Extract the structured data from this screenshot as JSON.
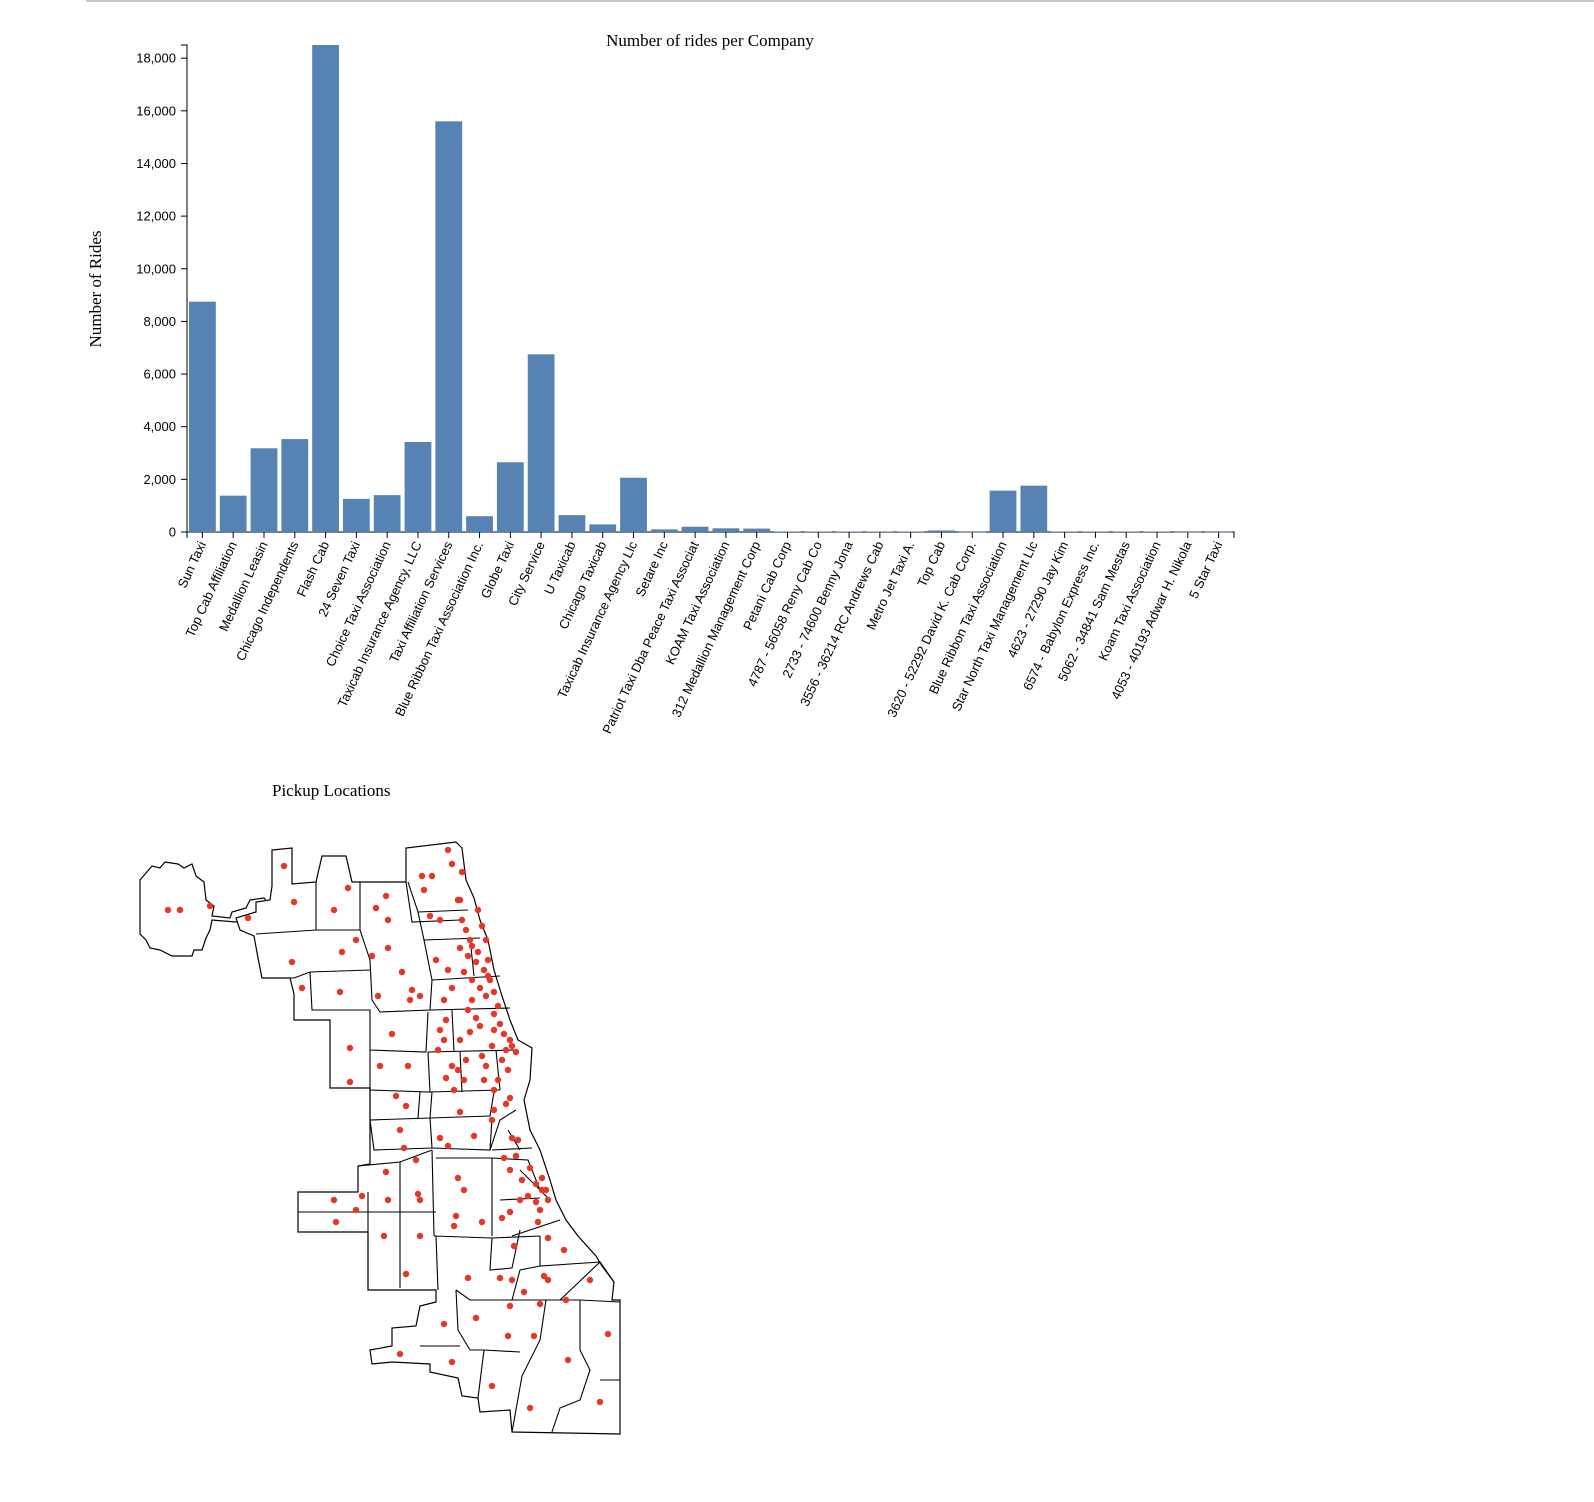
{
  "page": {
    "browser_chrome": false
  },
  "chart_data": [
    {
      "type": "bar",
      "title": "Number of rides per Company",
      "xlabel": "",
      "ylabel": "Number of Rides",
      "ylim": [
        0,
        18500
      ],
      "yticks": [
        0,
        2000,
        4000,
        6000,
        8000,
        10000,
        12000,
        14000,
        16000,
        18000
      ],
      "ytick_labels": [
        "0",
        "2,000",
        "4,000",
        "6,000",
        "8,000",
        "10,000",
        "12,000",
        "14,000",
        "16,000",
        "18,000"
      ],
      "grid": false,
      "bar_color": "#5683b3",
      "categories": [
        "Sun Taxi",
        "Top Cab Affiliation",
        "Medallion Leasin",
        "Chicago Independents",
        "Flash Cab",
        "24 Seven Taxi",
        "Choice Taxi Association",
        "Taxicab Insurance Agency, LLC",
        "Taxi Affiliation Services",
        "Blue Ribbon Taxi Association Inc.",
        "Globe Taxi",
        "City Service",
        "U Taxicab",
        "Chicago Taxicab",
        "Taxicab Insurance Agency Llc",
        "Setare Inc",
        "Patriot Taxi Dba Peace Taxi Associat",
        "KOAM Taxi Association",
        "312 Medallion Management Corp",
        "Petani Cab Corp",
        "4787 - 56058 Reny Cab Co",
        "2733 - 74600 Benny Jona",
        "3556 - 36214 RC Andrews Cab",
        "Metro Jet Taxi A.",
        "Top Cab",
        "3620 - 52292 David K. Cab Corp.",
        "Blue Ribbon Taxi Association",
        "Star North Taxi Management Llc",
        "4623 - 27290 Jay Kim",
        "6574 - Babylon Express Inc.",
        "5062 - 34841 Sam Mestas",
        "Koam Taxi Association",
        "4053 - 40193 Adwar H. Nikola",
        "5 Star Taxi"
      ],
      "values": [
        8750,
        1380,
        3180,
        3530,
        18500,
        1260,
        1400,
        3420,
        15600,
        600,
        2650,
        6750,
        640,
        290,
        2060,
        100,
        200,
        140,
        130,
        20,
        20,
        20,
        20,
        20,
        60,
        10,
        1570,
        1760,
        20,
        20,
        20,
        20,
        10,
        10
      ]
    }
  ],
  "map": {
    "title": "Pickup Locations",
    "district_fill": "#ffffff",
    "district_stroke": "#000000",
    "point_color": "#e8352a"
  }
}
